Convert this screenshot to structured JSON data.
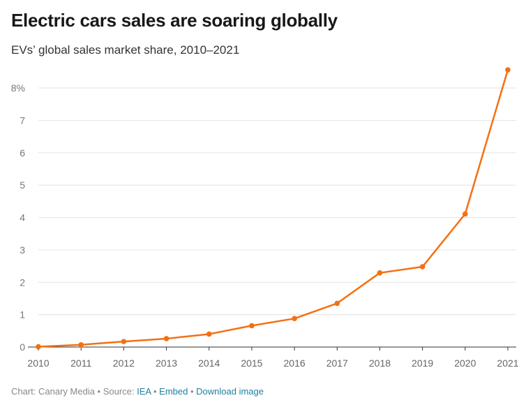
{
  "chart_data": {
    "type": "line",
    "title": "Electric cars sales are soaring globally",
    "subtitle": "EVs’ global sales market share, 2010–2021",
    "x": [
      "2010",
      "2011",
      "2012",
      "2013",
      "2014",
      "2015",
      "2016",
      "2017",
      "2018",
      "2019",
      "2020",
      "2021"
    ],
    "series": [
      {
        "values": [
          0.01,
          0.07,
          0.17,
          0.26,
          0.4,
          0.66,
          0.88,
          1.35,
          2.29,
          2.48,
          4.11,
          8.56
        ]
      }
    ],
    "y_ticks": [
      "0",
      "1",
      "2",
      "3",
      "4",
      "5",
      "6",
      "7",
      "8%"
    ],
    "ylim": [
      0,
      8.6
    ],
    "grid": true,
    "line_color": "#f47012"
  },
  "footer": {
    "prefix": "Chart: Canary Media • Source: ",
    "source_link": "IEA",
    "sep1": " • ",
    "embed_link": "Embed",
    "sep2": " • ",
    "download_link": "Download image"
  }
}
